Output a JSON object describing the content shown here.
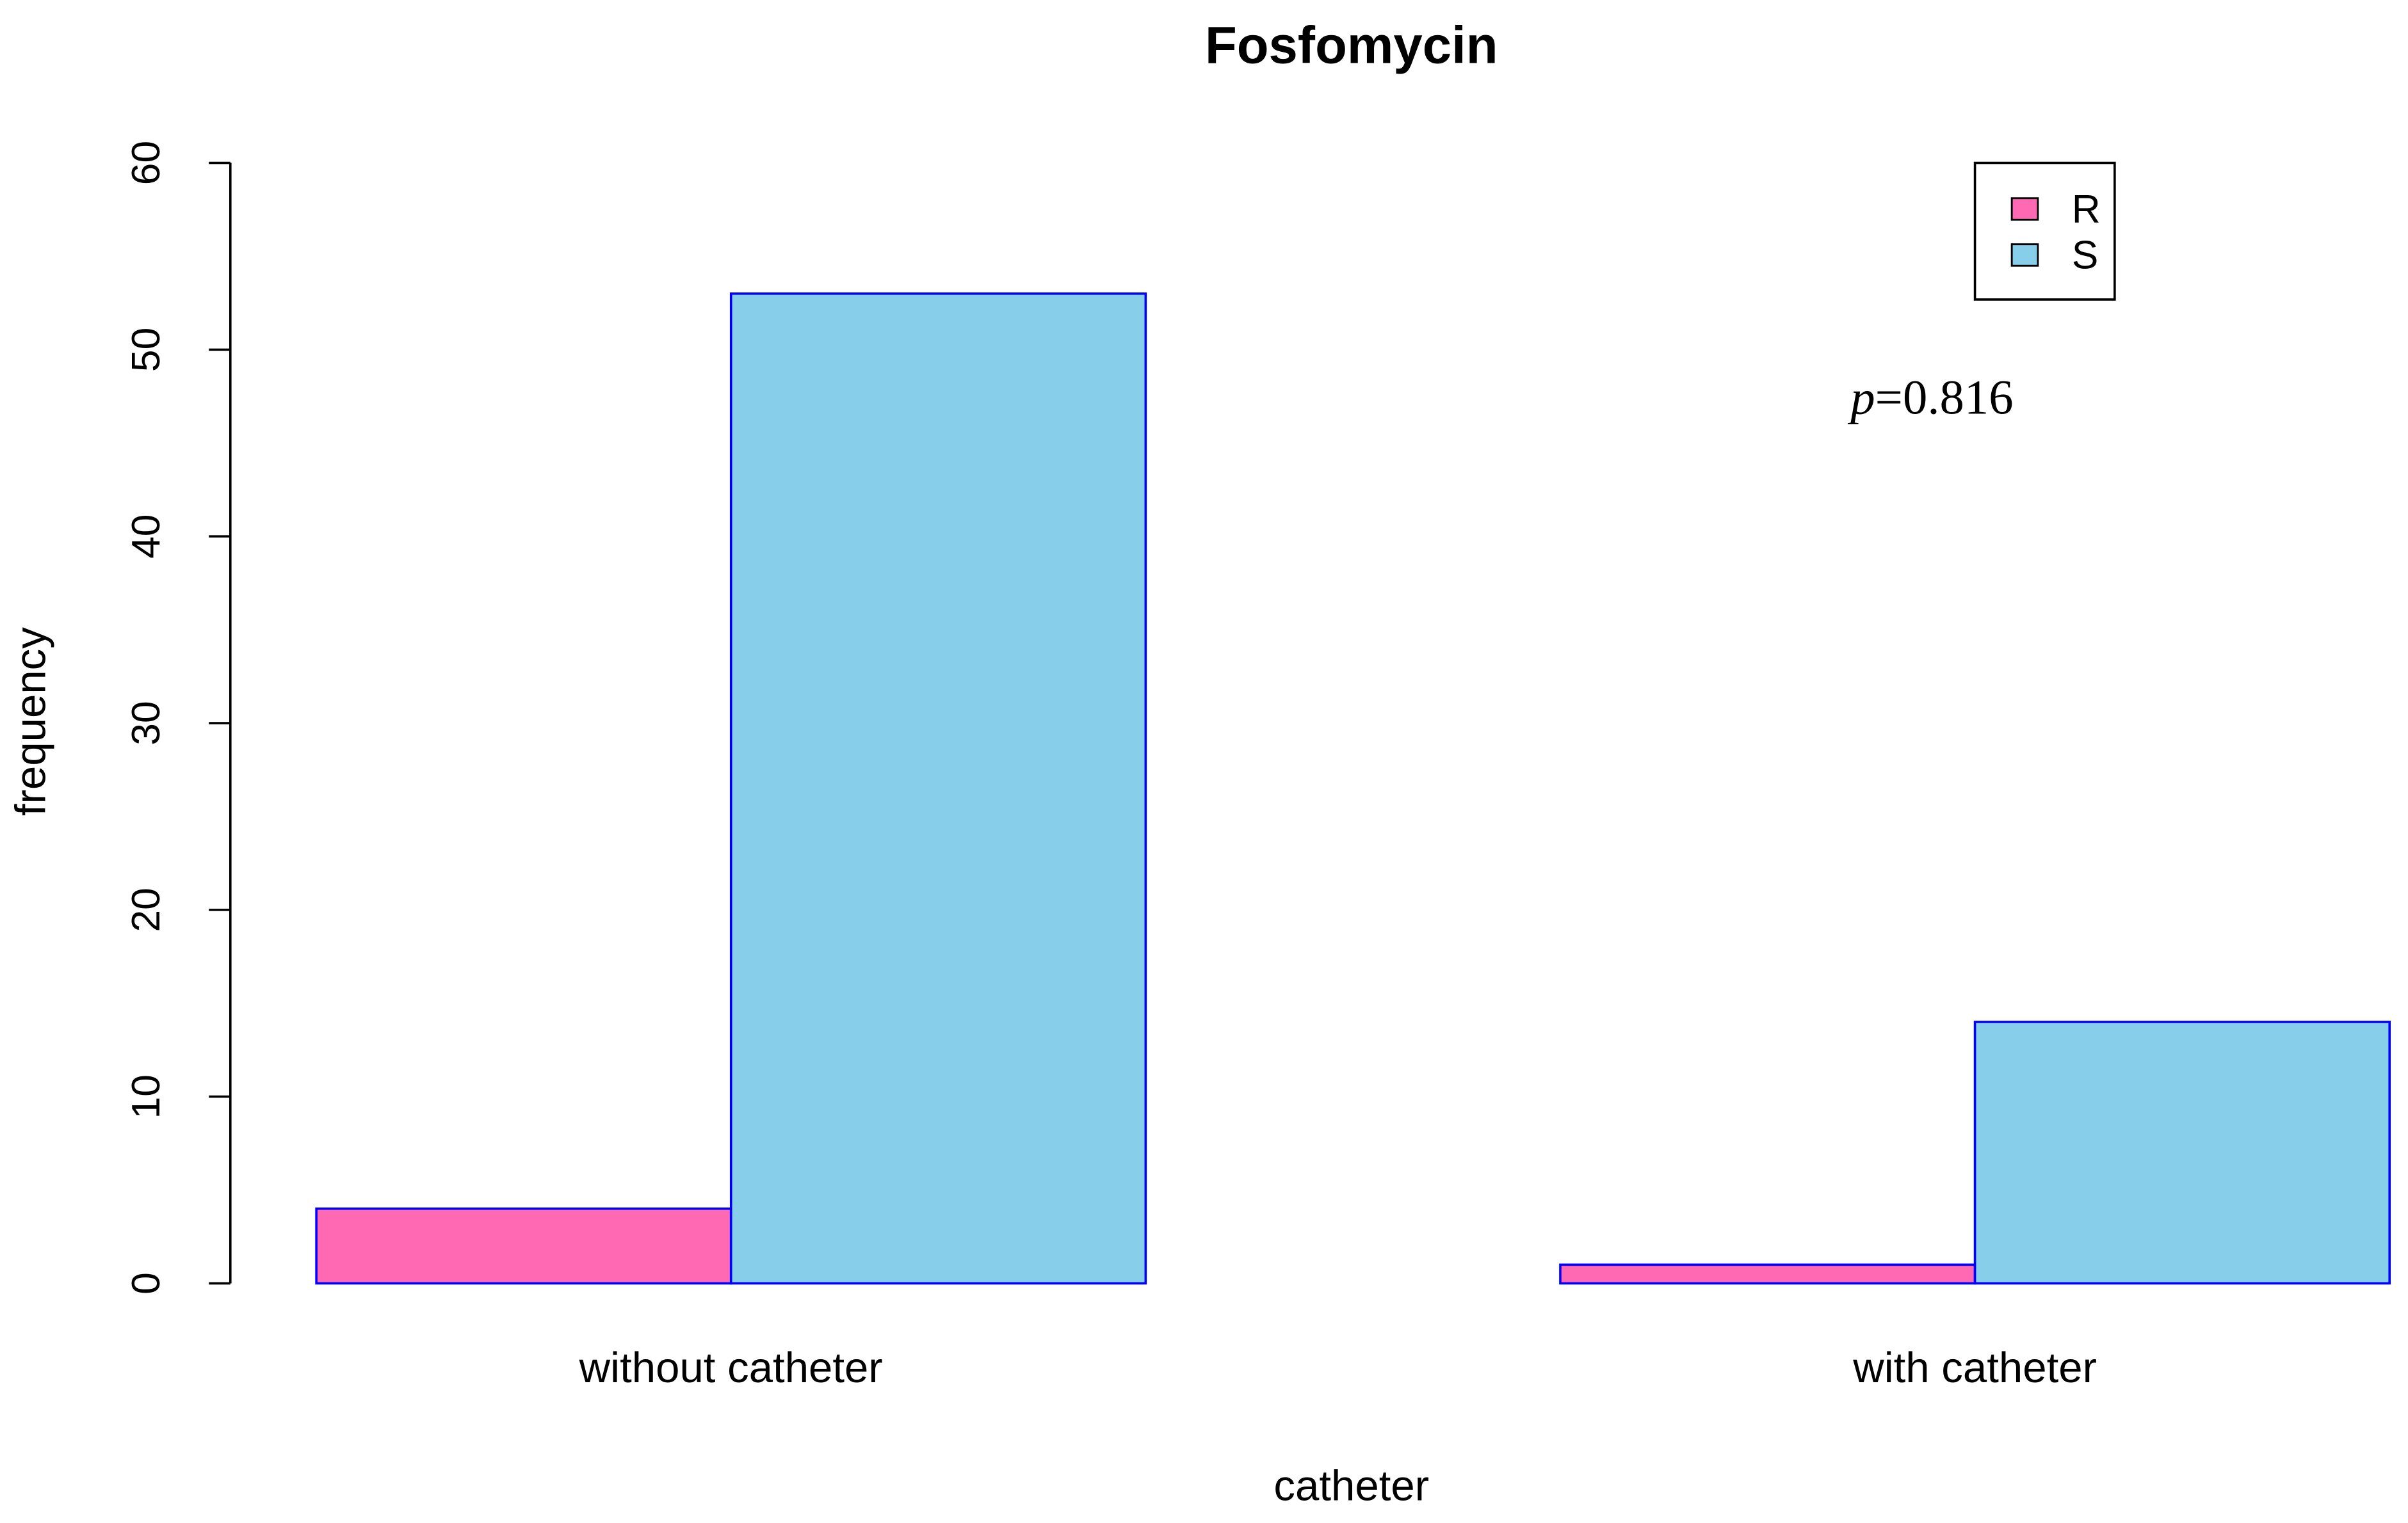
{
  "chart_data": {
    "type": "bar",
    "title": "Fosfomycin",
    "x_label": "catheter",
    "y_label": "frequency",
    "categories": [
      "without catheter",
      "with catheter"
    ],
    "series": [
      {
        "name": "R",
        "color": "#ff69b4",
        "values": [
          4,
          1
        ]
      },
      {
        "name": "S",
        "color": "#87ceeb",
        "values": [
          53,
          14
        ]
      }
    ],
    "bar_edge_color": "#0000ff",
    "ylim": [
      0,
      60
    ],
    "yticks": [
      0,
      10,
      20,
      30,
      40,
      50,
      60
    ],
    "legend": "top-right",
    "annotation": "p=0.816"
  }
}
